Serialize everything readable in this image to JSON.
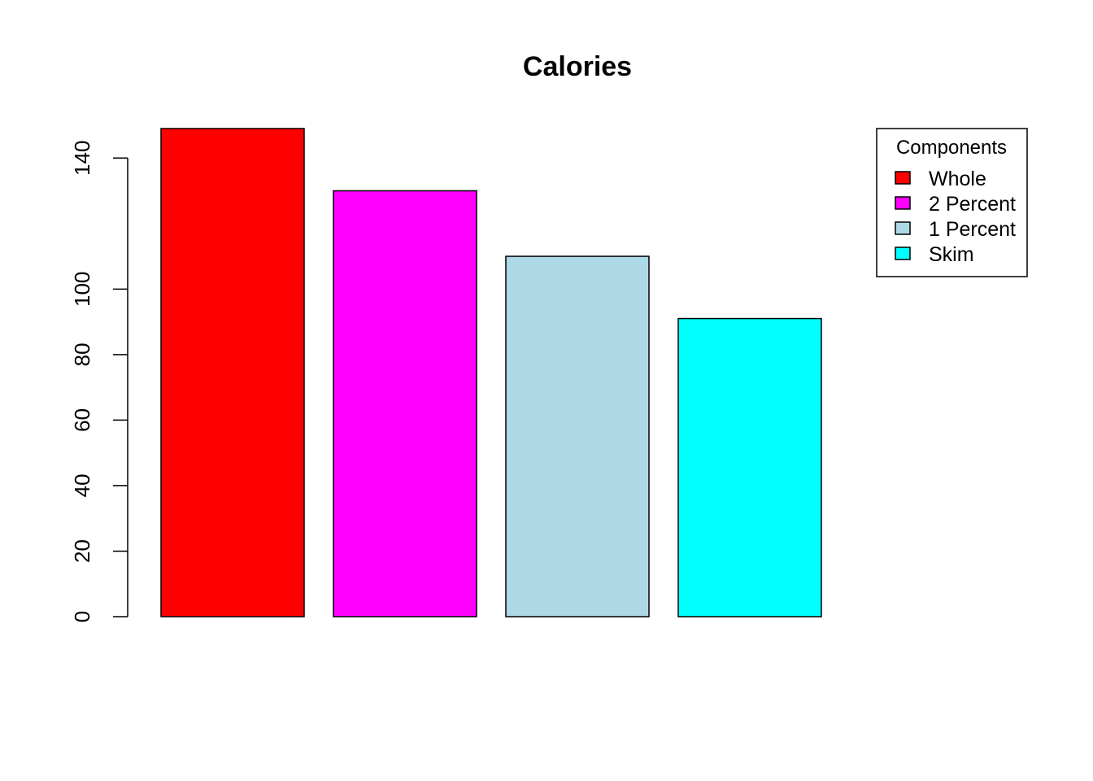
{
  "chart_data": {
    "type": "bar",
    "title": "Calories",
    "xlabel": "",
    "ylabel": "",
    "categories": [
      "Whole",
      "2 Percent",
      "1 Percent",
      "Skim"
    ],
    "values": [
      149,
      130,
      110,
      91
    ],
    "colors": [
      "#ff0000",
      "#ff00ff",
      "#add8e6",
      "#00ffff"
    ],
    "ylim": [
      0,
      149
    ],
    "yticks": [
      0,
      20,
      40,
      60,
      80,
      100,
      140
    ],
    "grid": false,
    "legend": {
      "title": "Components",
      "placement": "top-right",
      "items": [
        "Whole",
        "2 Percent",
        "1 Percent",
        "Skim"
      ]
    }
  }
}
